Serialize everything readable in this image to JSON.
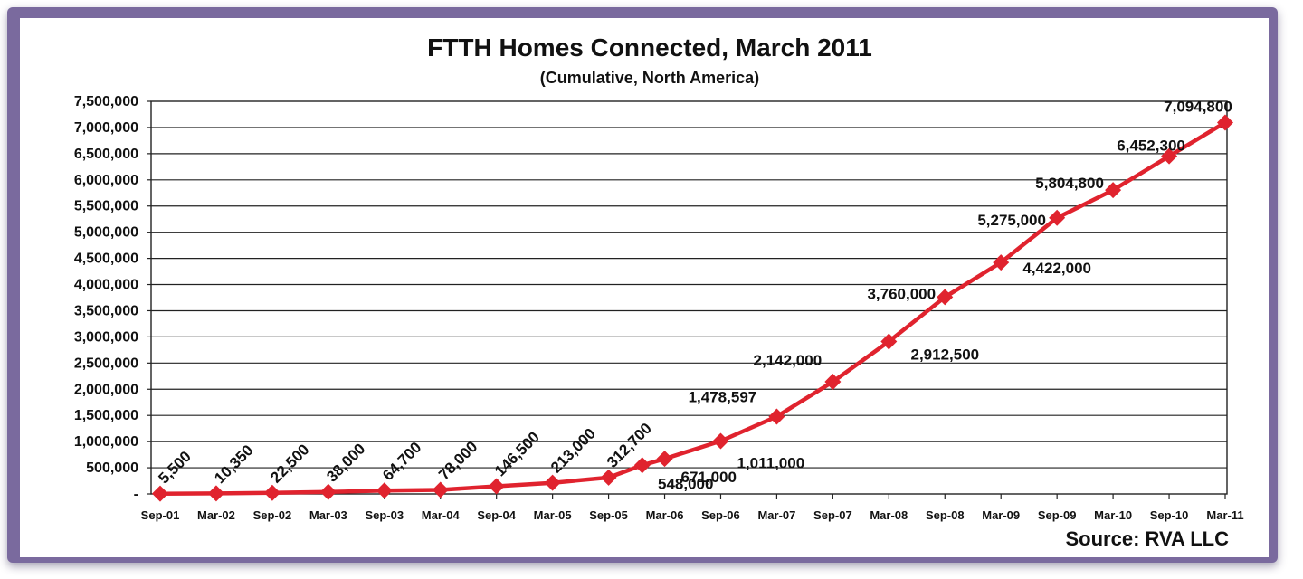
{
  "chart_data": {
    "type": "line",
    "title": "FTTH Homes Connected, March 2011",
    "subtitle": "(Cumulative, North America)",
    "source": "Source: RVA LLC",
    "xlabel": "",
    "ylabel": "",
    "ylim": [
      0,
      7500000
    ],
    "yticks": [
      {
        "value": 0,
        "label": "-"
      },
      {
        "value": 500000,
        "label": "500,000"
      },
      {
        "value": 1000000,
        "label": "1,000,000"
      },
      {
        "value": 1500000,
        "label": "1,500,000"
      },
      {
        "value": 2000000,
        "label": "2,000,000"
      },
      {
        "value": 2500000,
        "label": "2,500,000"
      },
      {
        "value": 3000000,
        "label": "3,000,000"
      },
      {
        "value": 3500000,
        "label": "3,500,000"
      },
      {
        "value": 4000000,
        "label": "4,000,000"
      },
      {
        "value": 4500000,
        "label": "4,500,000"
      },
      {
        "value": 5000000,
        "label": "5,000,000"
      },
      {
        "value": 5500000,
        "label": "5,500,000"
      },
      {
        "value": 6000000,
        "label": "6,000,000"
      },
      {
        "value": 6500000,
        "label": "6,500,000"
      },
      {
        "value": 7000000,
        "label": "7,000,000"
      },
      {
        "value": 7500000,
        "label": "7,500,000"
      }
    ],
    "grid": true,
    "legend": false,
    "series_color": "#e0232e",
    "categories": [
      "Sep-01",
      "Mar-02",
      "Sep-02",
      "Mar-03",
      "Sep-03",
      "Mar-04",
      "Sep-04",
      "Mar-05",
      "Sep-05",
      "Mar-06",
      "Sep-06",
      "Mar-07",
      "Sep-07",
      "Mar-08",
      "Sep-08",
      "Mar-09",
      "Sep-09",
      "Mar-10",
      "Sep-10",
      "Mar-11"
    ],
    "points": [
      {
        "label": "Sep-01",
        "value": 5500,
        "data_label": "5,500"
      },
      {
        "label": "Mar-02",
        "value": 10350,
        "data_label": "10,350"
      },
      {
        "label": "Sep-02",
        "value": 22500,
        "data_label": "22,500"
      },
      {
        "label": "Mar-03",
        "value": 38000,
        "data_label": "38,000"
      },
      {
        "label": "Sep-03",
        "value": 64700,
        "data_label": "64,700"
      },
      {
        "label": "Mar-04",
        "value": 78000,
        "data_label": "78,000"
      },
      {
        "label": "Sep-04",
        "value": 146500,
        "data_label": "146,500"
      },
      {
        "label": "Mar-05",
        "value": 213000,
        "data_label": "213,000"
      },
      {
        "label": "Sep-05",
        "value": 312700,
        "data_label": "312,700"
      },
      {
        "label": "",
        "value": 548000,
        "data_label": "548,000"
      },
      {
        "label": "Mar-06",
        "value": 671000,
        "data_label": "671,000"
      },
      {
        "label": "Sep-06",
        "value": 1011000,
        "data_label": "1,011,000"
      },
      {
        "label": "Mar-07",
        "value": 1478597,
        "data_label": "1,478,597"
      },
      {
        "label": "Sep-07",
        "value": 2142000,
        "data_label": "2,142,000"
      },
      {
        "label": "Mar-08",
        "value": 2912500,
        "data_label": "2,912,500"
      },
      {
        "label": "Sep-08",
        "value": 3760000,
        "data_label": "3,760,000"
      },
      {
        "label": "Mar-09",
        "value": 4422000,
        "data_label": "4,422,000"
      },
      {
        "label": "Sep-09",
        "value": 5275000,
        "data_label": "5,275,000"
      },
      {
        "label": "Mar-10",
        "value": 5804800,
        "data_label": "5,804,800"
      },
      {
        "label": "Sep-10",
        "value": 6452300,
        "data_label": "6,452,300"
      },
      {
        "label": "Mar-11",
        "value": 7094800,
        "data_label": "7,094,800"
      }
    ]
  }
}
